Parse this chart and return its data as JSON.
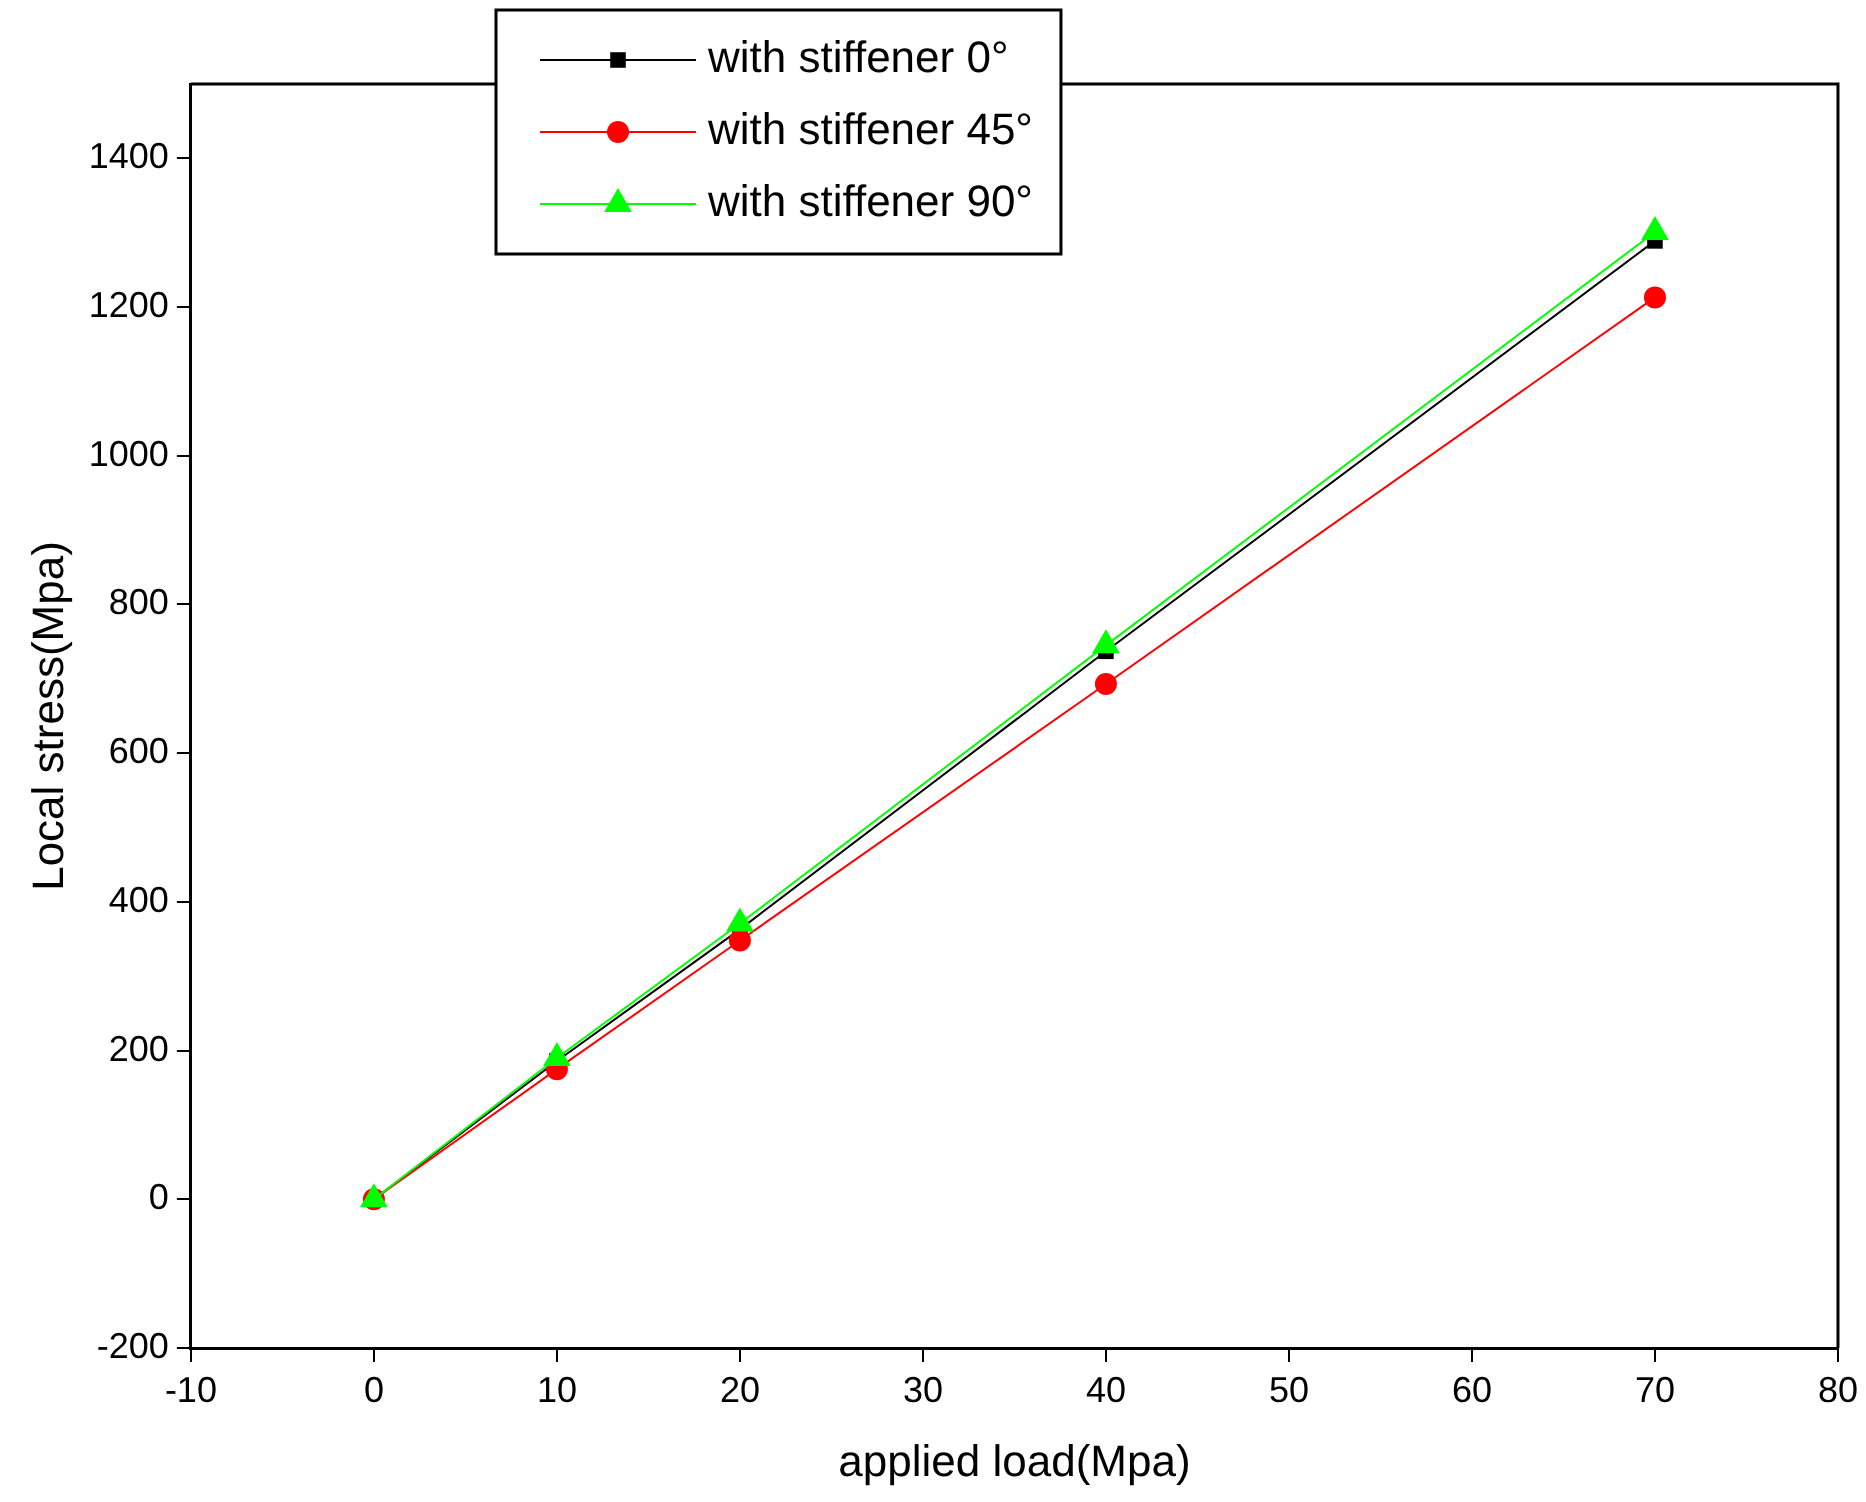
{
  "chart_data": {
    "type": "line",
    "xlabel": "applied load(Mpa)",
    "ylabel": "Local stress(Mpa)",
    "x": [
      0,
      10,
      20,
      40,
      70
    ],
    "series": [
      {
        "name": "with stiffener 0°",
        "color": "#000000",
        "marker": "square",
        "values": [
          0,
          186,
          363,
          737,
          1289
        ]
      },
      {
        "name": "with stiffener 45°",
        "color": "#ff0000",
        "marker": "circle",
        "values": [
          0,
          175,
          348,
          693,
          1213
        ]
      },
      {
        "name": "with stiffener 90°",
        "color": "#00ff00",
        "marker": "triangle",
        "values": [
          0,
          190,
          371,
          745,
          1301
        ]
      }
    ],
    "xlim": [
      -10,
      80
    ],
    "xticks": [
      -10,
      0,
      10,
      20,
      30,
      40,
      50,
      60,
      70,
      80
    ],
    "ylim": [
      -200,
      1500
    ],
    "yticks": [
      -200,
      0,
      200,
      400,
      600,
      800,
      1000,
      1200,
      1400
    ],
    "grid": false,
    "legend": "top",
    "line_style": "solid"
  }
}
